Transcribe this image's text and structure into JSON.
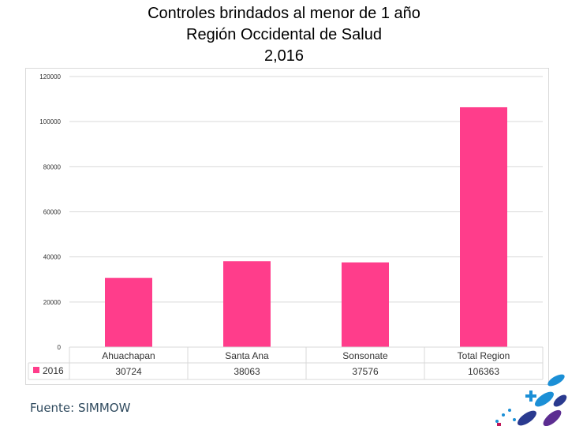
{
  "title_lines": [
    "Controles brindados al menor de 1 año",
    "Región Occidental de Salud",
    "2,016"
  ],
  "source": "Fuente: SIMMOW",
  "colors": {
    "bar": "#ff3d8b",
    "grid": "#d9d9d9",
    "axis_text": "#333333"
  },
  "chart_data": {
    "type": "bar",
    "title": "Controles brindados al menor de 1 año",
    "subtitle": "Región Occidental de Salud 2,016",
    "categories": [
      "Ahuachapan",
      "Santa Ana",
      "Sonsonate",
      "Total Region"
    ],
    "series": [
      {
        "name": "2016",
        "values": [
          30724,
          38063,
          37576,
          106363
        ],
        "value_labels": [
          "30724",
          "38063",
          "37576",
          "106363"
        ]
      }
    ],
    "ylim": [
      0,
      120000
    ],
    "yticks": [
      0,
      20000,
      40000,
      60000,
      80000,
      100000,
      120000
    ],
    "ytick_labels": [
      "0",
      "20000",
      "40000",
      "60000",
      "80000",
      "100000",
      "120000"
    ],
    "grid": true,
    "legend": "data-table"
  }
}
